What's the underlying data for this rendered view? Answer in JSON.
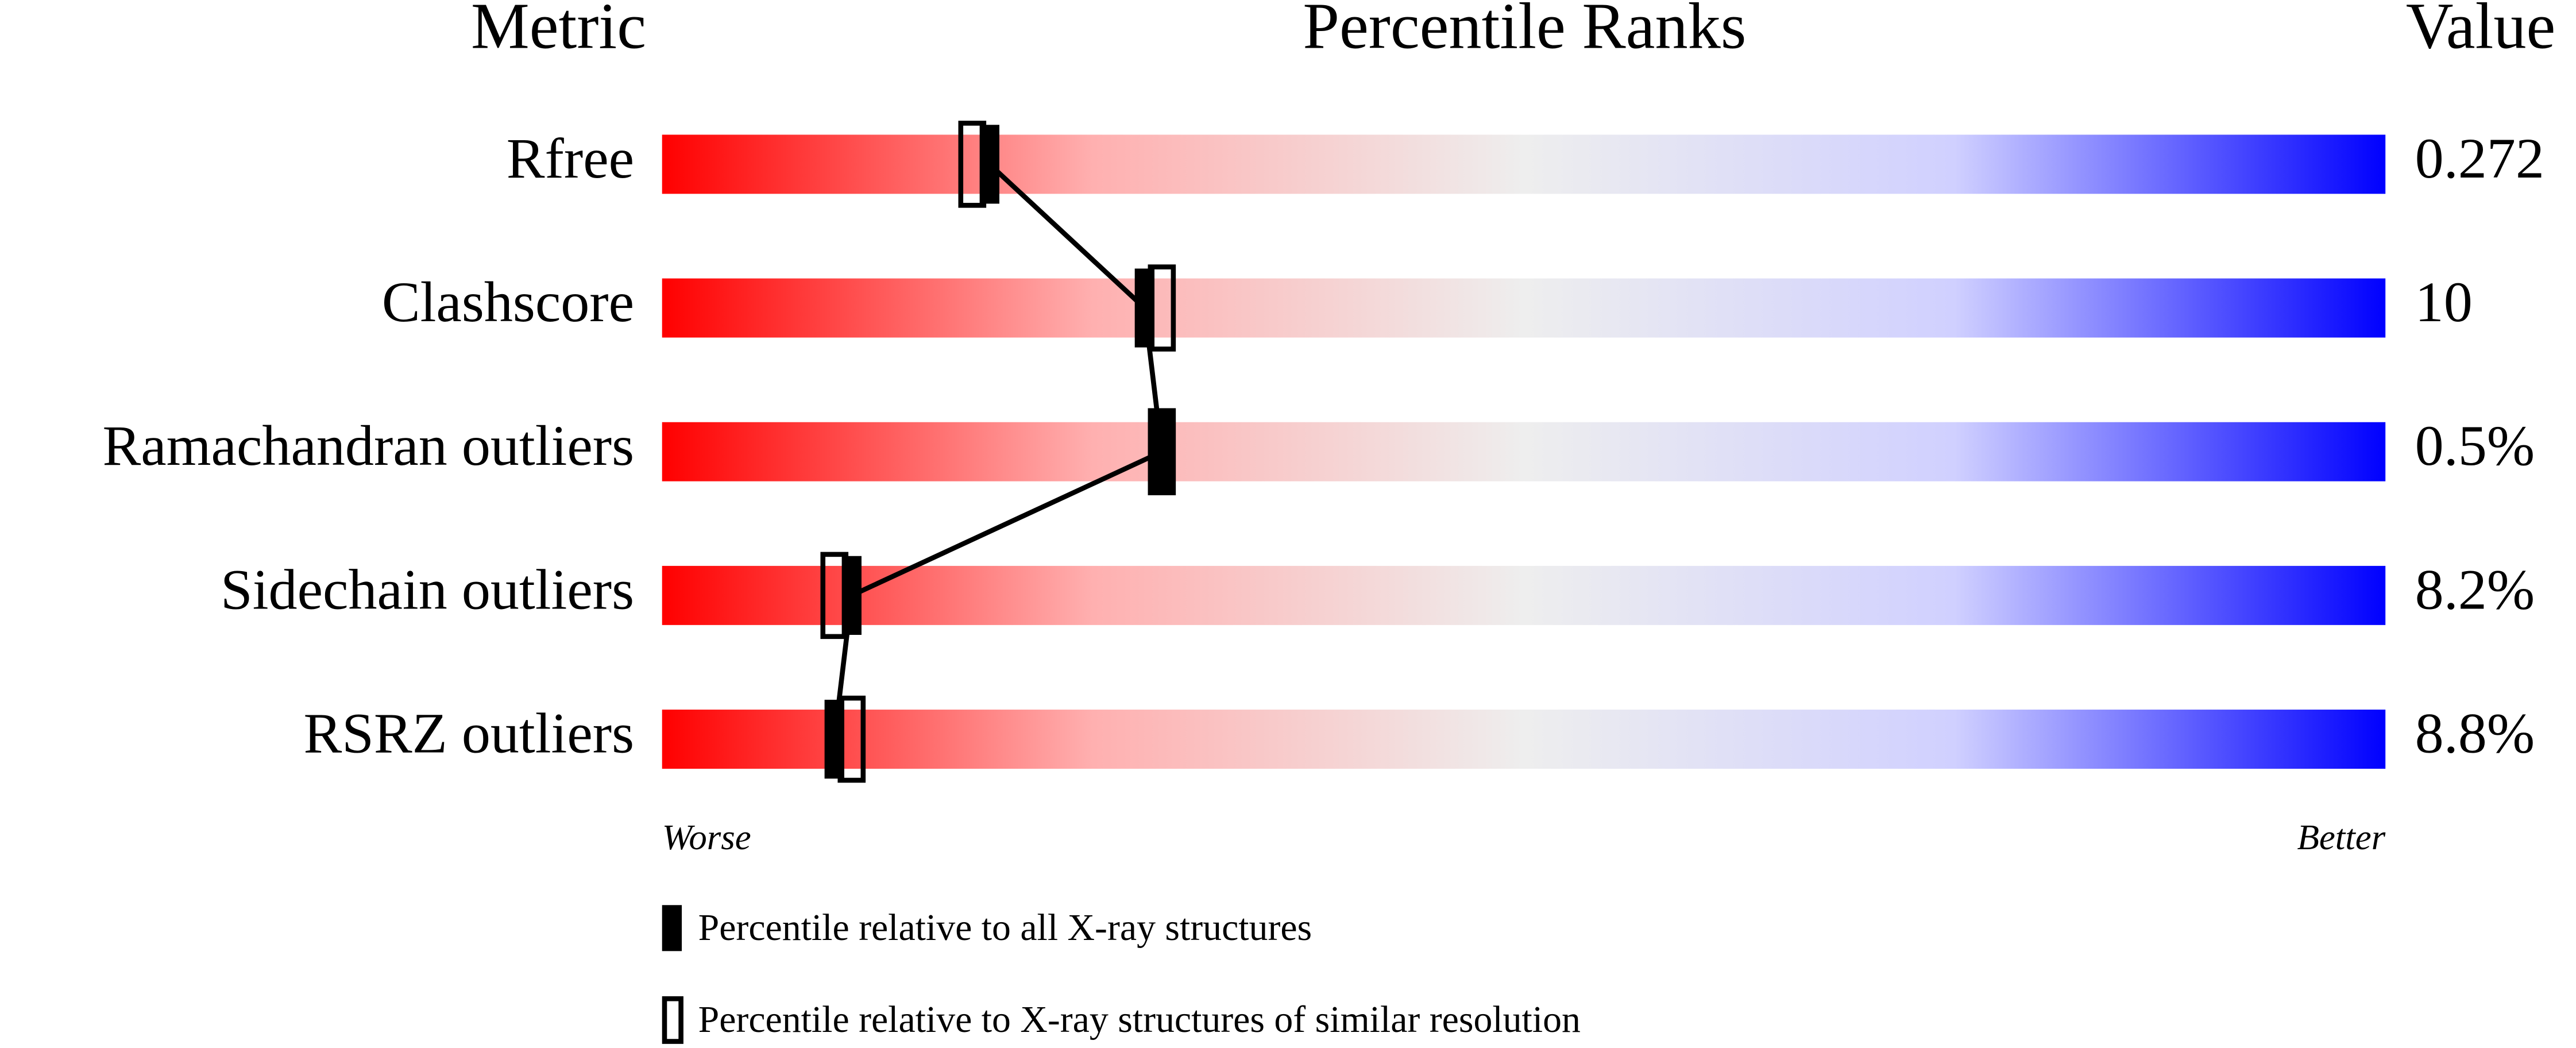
{
  "chart_data": {
    "type": "percentile",
    "column_titles": [
      "Metric",
      "Percentile Ranks",
      "Value"
    ],
    "categories": [
      "Rfree",
      "Clashscore",
      "Ramachandran outliers",
      "Sidechain outliers",
      "RSRZ outliers"
    ],
    "values": [
      0.272,
      10,
      0.5,
      8.2,
      8.8
    ],
    "value_labels": [
      "0.272",
      "10",
      "0.5%",
      "8.2%",
      "8.8%"
    ],
    "series": [
      {
        "name": "Percentile relative to all X-ray structures",
        "marker": "filled",
        "color": "#000000",
        "values": [
          19,
          28,
          29,
          11,
          10
        ]
      },
      {
        "name": "Percentile relative to X-ray structures of similar resolution",
        "marker": "open",
        "color": "#000000",
        "values": [
          18,
          29,
          29,
          10,
          11
        ]
      }
    ],
    "xlim": [
      0,
      100
    ],
    "axis_labels": {
      "low": "Worse",
      "high": "Better"
    },
    "gradient": [
      "#ff0000",
      "#ffb0b0",
      "#eeeeee",
      "#d0d0ff",
      "#0000ff"
    ]
  }
}
